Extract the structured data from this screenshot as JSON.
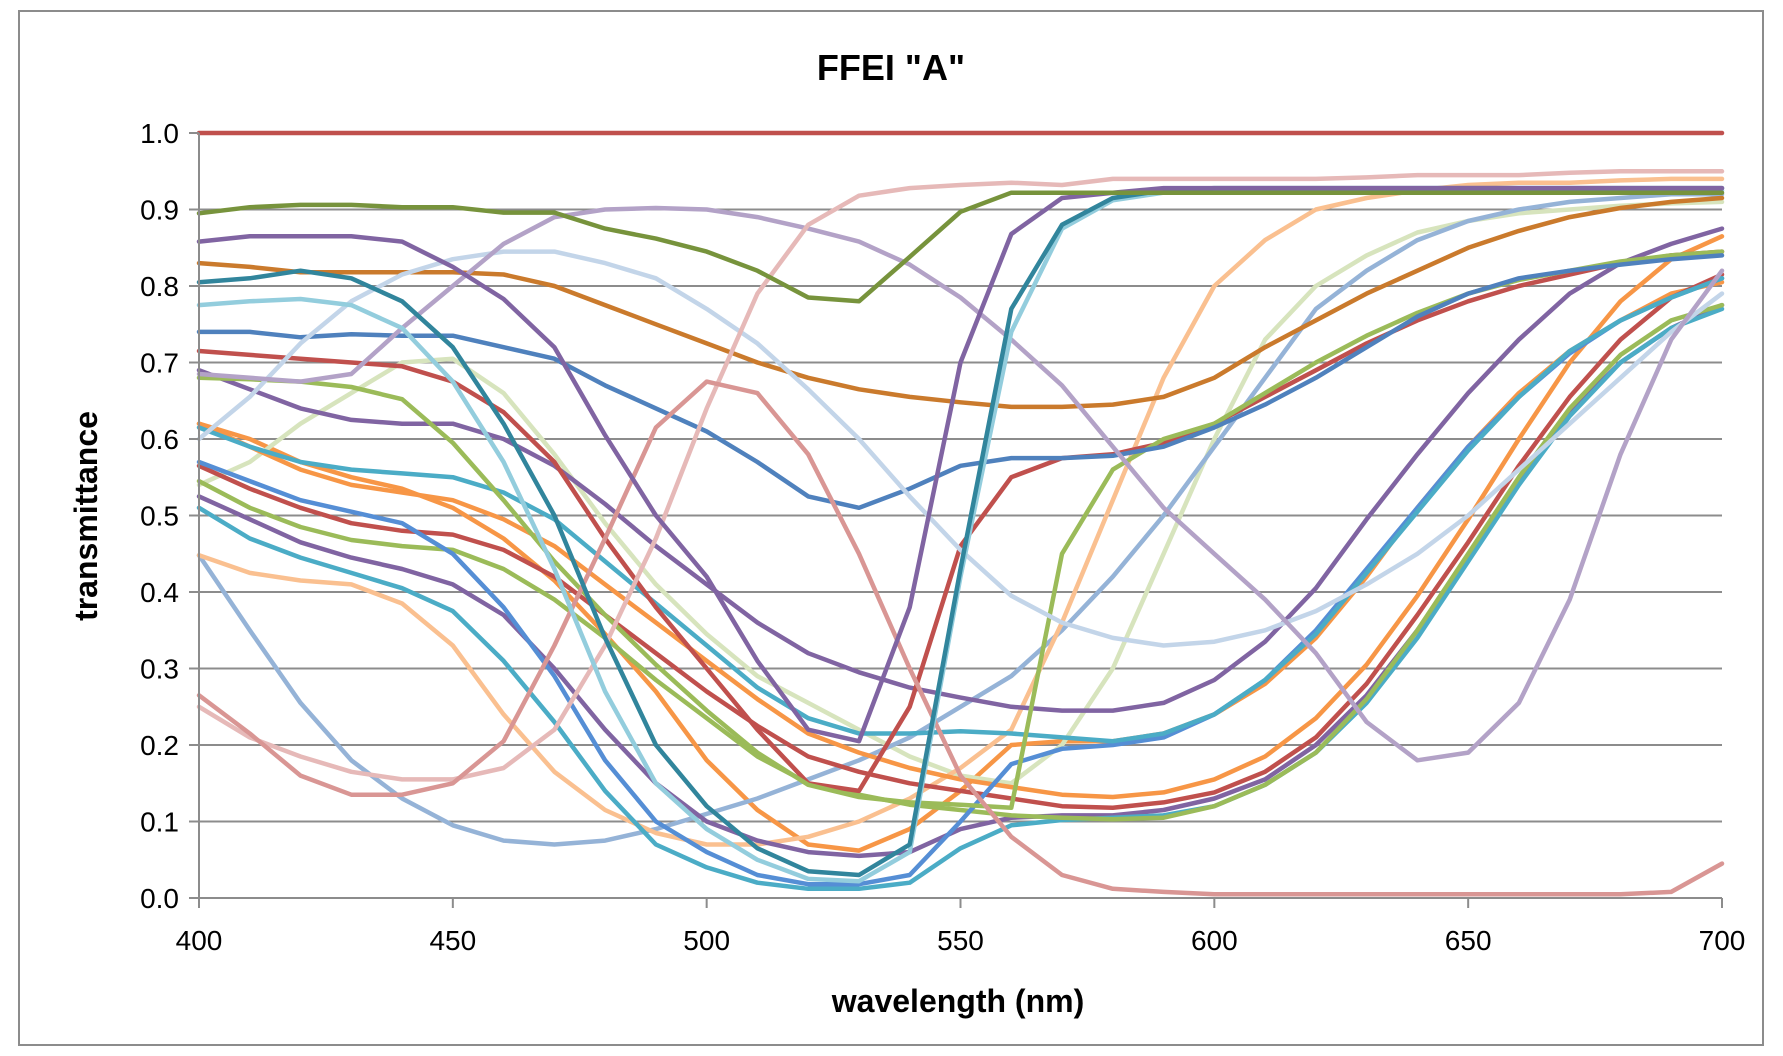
{
  "chart_data": {
    "type": "line",
    "title": "FFEI \"A\"",
    "xlabel": "wavelength (nm)",
    "ylabel": "transmittance",
    "xlim": [
      400,
      700
    ],
    "ylim": [
      0,
      1
    ],
    "x_ticks": [
      "400",
      "450",
      "500",
      "550",
      "600",
      "650",
      "700"
    ],
    "y_ticks": [
      "0.0",
      "0.1",
      "0.2",
      "0.3",
      "0.4",
      "0.5",
      "0.6",
      "0.7",
      "0.8",
      "0.9",
      "1.0"
    ],
    "grid": true,
    "legend": "none",
    "x": [
      400,
      410,
      420,
      430,
      440,
      450,
      460,
      470,
      480,
      490,
      500,
      510,
      520,
      530,
      540,
      550,
      560,
      570,
      580,
      590,
      600,
      610,
      620,
      630,
      640,
      650,
      660,
      670,
      680,
      690,
      700
    ],
    "series": [
      {
        "color": "#c0504d",
        "values": [
          1.0,
          1.0,
          1.0,
          1.0,
          1.0,
          1.0,
          1.0,
          1.0,
          1.0,
          1.0,
          1.0,
          1.0,
          1.0,
          1.0,
          1.0,
          1.0,
          1.0,
          1.0,
          1.0,
          1.0,
          1.0,
          1.0,
          1.0,
          1.0,
          1.0,
          1.0,
          1.0,
          1.0,
          1.0,
          1.0,
          1.0
        ]
      },
      {
        "color": "#77933c",
        "values": [
          0.895,
          0.903,
          0.906,
          0.906,
          0.903,
          0.903,
          0.896,
          0.896,
          0.875,
          0.862,
          0.845,
          0.82,
          0.785,
          0.78,
          0.838,
          0.897,
          0.922,
          0.922,
          0.922,
          0.922,
          0.922,
          0.922,
          0.922,
          0.922,
          0.922,
          0.922,
          0.922,
          0.922,
          0.922,
          0.922,
          0.922
        ]
      },
      {
        "color": "#8064a2",
        "values": [
          0.858,
          0.865,
          0.865,
          0.865,
          0.858,
          0.825,
          0.783,
          0.72,
          0.605,
          0.5,
          0.42,
          0.31,
          0.22,
          0.205,
          0.38,
          0.7,
          0.868,
          0.915,
          0.922,
          0.928,
          0.928,
          0.928,
          0.928,
          0.928,
          0.928,
          0.928,
          0.928,
          0.928,
          0.928,
          0.928,
          0.928
        ]
      },
      {
        "color": "#31859c",
        "values": [
          0.805,
          0.81,
          0.82,
          0.81,
          0.78,
          0.72,
          0.62,
          0.5,
          0.34,
          0.2,
          0.12,
          0.065,
          0.035,
          0.03,
          0.07,
          0.43,
          0.77,
          0.88,
          0.915,
          0.925,
          0.928,
          0.928,
          0.928,
          0.928,
          0.928,
          0.928,
          0.928,
          0.928,
          0.928,
          0.928,
          0.928
        ]
      },
      {
        "color": "#93cddd",
        "values": [
          0.775,
          0.78,
          0.783,
          0.775,
          0.745,
          0.675,
          0.57,
          0.43,
          0.27,
          0.15,
          0.09,
          0.05,
          0.025,
          0.022,
          0.06,
          0.42,
          0.74,
          0.875,
          0.912,
          0.922,
          0.925,
          0.925,
          0.925,
          0.925,
          0.925,
          0.925,
          0.925,
          0.925,
          0.925,
          0.925,
          0.925
        ]
      },
      {
        "color": "#d99694",
        "values": [
          0.265,
          0.215,
          0.16,
          0.135,
          0.135,
          0.15,
          0.205,
          0.33,
          0.47,
          0.615,
          0.675,
          0.66,
          0.58,
          0.45,
          0.3,
          0.16,
          0.08,
          0.03,
          0.012,
          0.008,
          0.005,
          0.005,
          0.005,
          0.005,
          0.005,
          0.005,
          0.005,
          0.005,
          0.005,
          0.008,
          0.045
        ]
      },
      {
        "color": "#e6b9b8",
        "values": [
          0.25,
          0.21,
          0.185,
          0.165,
          0.155,
          0.155,
          0.17,
          0.22,
          0.33,
          0.47,
          0.64,
          0.79,
          0.88,
          0.918,
          0.928,
          0.932,
          0.935,
          0.932,
          0.94,
          0.94,
          0.94,
          0.94,
          0.94,
          0.942,
          0.945,
          0.945,
          0.945,
          0.948,
          0.95,
          0.95,
          0.95
        ]
      },
      {
        "color": "#b3a2c7",
        "values": [
          0.685,
          0.68,
          0.675,
          0.685,
          0.745,
          0.8,
          0.855,
          0.89,
          0.9,
          0.902,
          0.9,
          0.89,
          0.875,
          0.858,
          0.828,
          0.785,
          0.73,
          0.67,
          0.59,
          0.51,
          0.45,
          0.39,
          0.32,
          0.23,
          0.18,
          0.19,
          0.255,
          0.39,
          0.58,
          0.73,
          0.82
        ]
      },
      {
        "color": "#c3d5e9",
        "values": [
          0.6,
          0.655,
          0.725,
          0.78,
          0.815,
          0.835,
          0.845,
          0.845,
          0.83,
          0.81,
          0.77,
          0.725,
          0.665,
          0.6,
          0.525,
          0.455,
          0.395,
          0.36,
          0.34,
          0.33,
          0.335,
          0.35,
          0.375,
          0.41,
          0.45,
          0.5,
          0.56,
          0.62,
          0.68,
          0.74,
          0.79
        ]
      },
      {
        "color": "#ca7a2c",
        "values": [
          0.83,
          0.825,
          0.818,
          0.818,
          0.818,
          0.818,
          0.815,
          0.8,
          0.775,
          0.75,
          0.725,
          0.7,
          0.68,
          0.665,
          0.655,
          0.648,
          0.642,
          0.642,
          0.645,
          0.655,
          0.68,
          0.72,
          0.755,
          0.79,
          0.82,
          0.85,
          0.872,
          0.89,
          0.902,
          0.91,
          0.915
        ]
      },
      {
        "color": "#4f81bd",
        "values": [
          0.74,
          0.74,
          0.733,
          0.737,
          0.735,
          0.735,
          0.72,
          0.705,
          0.67,
          0.64,
          0.61,
          0.57,
          0.525,
          0.51,
          0.535,
          0.565,
          0.575,
          0.575,
          0.578,
          0.59,
          0.615,
          0.645,
          0.68,
          0.72,
          0.76,
          0.79,
          0.81,
          0.82,
          0.828,
          0.835,
          0.84
        ]
      },
      {
        "color": "#9bbb59",
        "values": [
          0.68,
          0.678,
          0.675,
          0.668,
          0.652,
          0.595,
          0.52,
          0.44,
          0.37,
          0.305,
          0.245,
          0.19,
          0.148,
          0.132,
          0.125,
          0.122,
          0.118,
          0.45,
          0.56,
          0.6,
          0.62,
          0.66,
          0.7,
          0.735,
          0.765,
          0.79,
          0.808,
          0.82,
          0.832,
          0.84,
          0.845
        ]
      },
      {
        "color": "#c0504d",
        "values": [
          0.715,
          0.71,
          0.705,
          0.7,
          0.695,
          0.675,
          0.635,
          0.57,
          0.47,
          0.38,
          0.3,
          0.22,
          0.15,
          0.14,
          0.25,
          0.46,
          0.55,
          0.575,
          0.58,
          0.595,
          0.62,
          0.655,
          0.69,
          0.725,
          0.755,
          0.78,
          0.8,
          0.815,
          0.83,
          0.84,
          0.845
        ]
      },
      {
        "color": "#8064a2",
        "values": [
          0.69,
          0.665,
          0.64,
          0.625,
          0.62,
          0.62,
          0.6,
          0.565,
          0.515,
          0.46,
          0.41,
          0.36,
          0.32,
          0.295,
          0.275,
          0.262,
          0.25,
          0.245,
          0.245,
          0.255,
          0.285,
          0.335,
          0.405,
          0.495,
          0.58,
          0.66,
          0.73,
          0.79,
          0.83,
          0.855,
          0.875
        ]
      },
      {
        "color": "#4bacc6",
        "values": [
          0.615,
          0.59,
          0.57,
          0.56,
          0.555,
          0.55,
          0.53,
          0.495,
          0.44,
          0.385,
          0.33,
          0.275,
          0.235,
          0.215,
          0.215,
          0.218,
          0.215,
          0.21,
          0.205,
          0.215,
          0.24,
          0.285,
          0.345,
          0.425,
          0.505,
          0.585,
          0.655,
          0.715,
          0.755,
          0.785,
          0.81
        ]
      },
      {
        "color": "#558ed5",
        "values": [
          0.57,
          0.545,
          0.52,
          0.505,
          0.49,
          0.45,
          0.38,
          0.29,
          0.18,
          0.1,
          0.06,
          0.03,
          0.018,
          0.018,
          0.03,
          0.1,
          0.175,
          0.195,
          0.2,
          0.21,
          0.24,
          0.285,
          0.35,
          0.43,
          0.51,
          0.59,
          0.655,
          0.712,
          0.755,
          0.785,
          0.81
        ]
      },
      {
        "color": "#f79646",
        "values": [
          0.62,
          0.59,
          0.56,
          0.54,
          0.53,
          0.52,
          0.495,
          0.46,
          0.41,
          0.36,
          0.31,
          0.26,
          0.215,
          0.19,
          0.17,
          0.155,
          0.145,
          0.135,
          0.132,
          0.138,
          0.155,
          0.185,
          0.235,
          0.305,
          0.395,
          0.495,
          0.6,
          0.7,
          0.78,
          0.835,
          0.865
        ]
      },
      {
        "color": "#c0504d",
        "values": [
          0.565,
          0.535,
          0.51,
          0.49,
          0.48,
          0.475,
          0.455,
          0.42,
          0.37,
          0.32,
          0.27,
          0.225,
          0.185,
          0.165,
          0.15,
          0.14,
          0.13,
          0.12,
          0.118,
          0.125,
          0.138,
          0.165,
          0.21,
          0.28,
          0.37,
          0.465,
          0.565,
          0.655,
          0.73,
          0.785,
          0.815
        ]
      },
      {
        "color": "#9bbb59",
        "values": [
          0.545,
          0.51,
          0.485,
          0.468,
          0.46,
          0.455,
          0.43,
          0.39,
          0.34,
          0.285,
          0.235,
          0.185,
          0.15,
          0.135,
          0.122,
          0.115,
          0.108,
          0.105,
          0.103,
          0.105,
          0.12,
          0.148,
          0.19,
          0.26,
          0.35,
          0.45,
          0.55,
          0.64,
          0.71,
          0.755,
          0.775
        ]
      },
      {
        "color": "#4bacc6",
        "values": [
          0.51,
          0.47,
          0.445,
          0.425,
          0.405,
          0.375,
          0.31,
          0.23,
          0.14,
          0.07,
          0.04,
          0.02,
          0.012,
          0.012,
          0.02,
          0.065,
          0.095,
          0.102,
          0.105,
          0.108,
          0.12,
          0.148,
          0.19,
          0.255,
          0.34,
          0.44,
          0.54,
          0.63,
          0.7,
          0.745,
          0.77
        ]
      },
      {
        "color": "#8064a2",
        "values": [
          0.525,
          0.495,
          0.465,
          0.445,
          0.43,
          0.41,
          0.37,
          0.3,
          0.22,
          0.15,
          0.1,
          0.075,
          0.06,
          0.055,
          0.06,
          0.09,
          0.105,
          0.108,
          0.108,
          0.115,
          0.13,
          0.155,
          0.2,
          0.265,
          0.35,
          0.445,
          0.545,
          0.635,
          0.7,
          0.745,
          0.775
        ]
      },
      {
        "color": "#fac090",
        "values": [
          0.448,
          0.425,
          0.415,
          0.41,
          0.385,
          0.33,
          0.24,
          0.165,
          0.115,
          0.085,
          0.07,
          0.07,
          0.08,
          0.1,
          0.13,
          0.17,
          0.22,
          0.36,
          0.52,
          0.68,
          0.8,
          0.86,
          0.9,
          0.915,
          0.925,
          0.932,
          0.935,
          0.935,
          0.938,
          0.94,
          0.94
        ]
      },
      {
        "color": "#95b3d7",
        "values": [
          0.448,
          0.35,
          0.255,
          0.18,
          0.13,
          0.095,
          0.075,
          0.07,
          0.075,
          0.09,
          0.11,
          0.13,
          0.155,
          0.18,
          0.21,
          0.25,
          0.29,
          0.35,
          0.42,
          0.5,
          0.59,
          0.68,
          0.77,
          0.82,
          0.86,
          0.885,
          0.9,
          0.91,
          0.915,
          0.92,
          0.92
        ]
      },
      {
        "color": "#d7e4bd",
        "values": [
          0.54,
          0.57,
          0.62,
          0.66,
          0.7,
          0.705,
          0.66,
          0.58,
          0.49,
          0.41,
          0.345,
          0.29,
          0.255,
          0.22,
          0.185,
          0.16,
          0.15,
          0.2,
          0.3,
          0.45,
          0.6,
          0.73,
          0.8,
          0.84,
          0.87,
          0.885,
          0.895,
          0.9,
          0.905,
          0.908,
          0.91
        ]
      },
      {
        "color": "#f79646",
        "values": [
          0.62,
          0.6,
          0.57,
          0.55,
          0.535,
          0.51,
          0.47,
          0.415,
          0.345,
          0.27,
          0.18,
          0.115,
          0.07,
          0.062,
          0.09,
          0.14,
          0.2,
          0.205,
          0.205,
          0.215,
          0.24,
          0.28,
          0.34,
          0.42,
          0.51,
          0.59,
          0.66,
          0.715,
          0.755,
          0.79,
          0.805
        ]
      }
    ]
  }
}
